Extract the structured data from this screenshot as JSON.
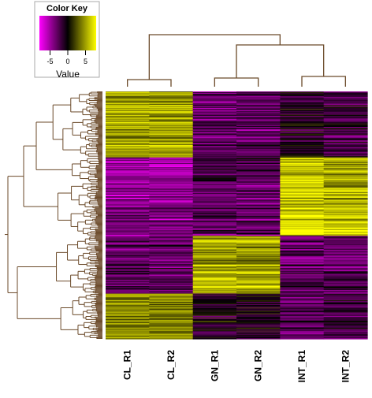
{
  "chart_data": {
    "type": "heatmap",
    "title": "",
    "xlabel": "",
    "ylabel": "",
    "columns": [
      "CL_R1",
      "CL_R2",
      "GN_R1",
      "GN_R2",
      "INT_R1",
      "INT_R2"
    ],
    "row_count": 300,
    "value_range": [
      -8,
      8
    ],
    "row_dendrogram": true,
    "column_dendrogram": true,
    "column_dendrogram_merges": [
      [
        "CL_R1",
        "CL_R2"
      ],
      [
        "GN_R1",
        "GN_R2"
      ],
      [
        "INT_R1",
        "INT_R2"
      ],
      [
        "GN",
        "INT"
      ],
      [
        "CL",
        "GN+INT"
      ]
    ],
    "row_cluster_blocks": [
      {
        "rows": [
          0,
          80
        ],
        "values": [
          5,
          5,
          -3,
          -3,
          -1,
          -2
        ]
      },
      {
        "rows": [
          80,
          110
        ],
        "values": [
          -5,
          -5,
          -2,
          -2,
          6,
          5
        ]
      },
      {
        "rows": [
          110,
          175
        ],
        "values": [
          -4,
          -4,
          -3,
          -3,
          7,
          6
        ]
      },
      {
        "rows": [
          175,
          245
        ],
        "values": [
          -3,
          -3,
          5,
          5,
          -3,
          -3
        ]
      },
      {
        "rows": [
          245,
          300
        ],
        "values": [
          4,
          4,
          -1,
          -1,
          -3,
          -2
        ]
      }
    ],
    "color_key": {
      "title": "Color Key",
      "label": "Value",
      "ticks": [
        -5,
        0,
        5
      ],
      "colors": [
        "#ff00ff",
        "#000000",
        "#ffff00"
      ]
    }
  }
}
